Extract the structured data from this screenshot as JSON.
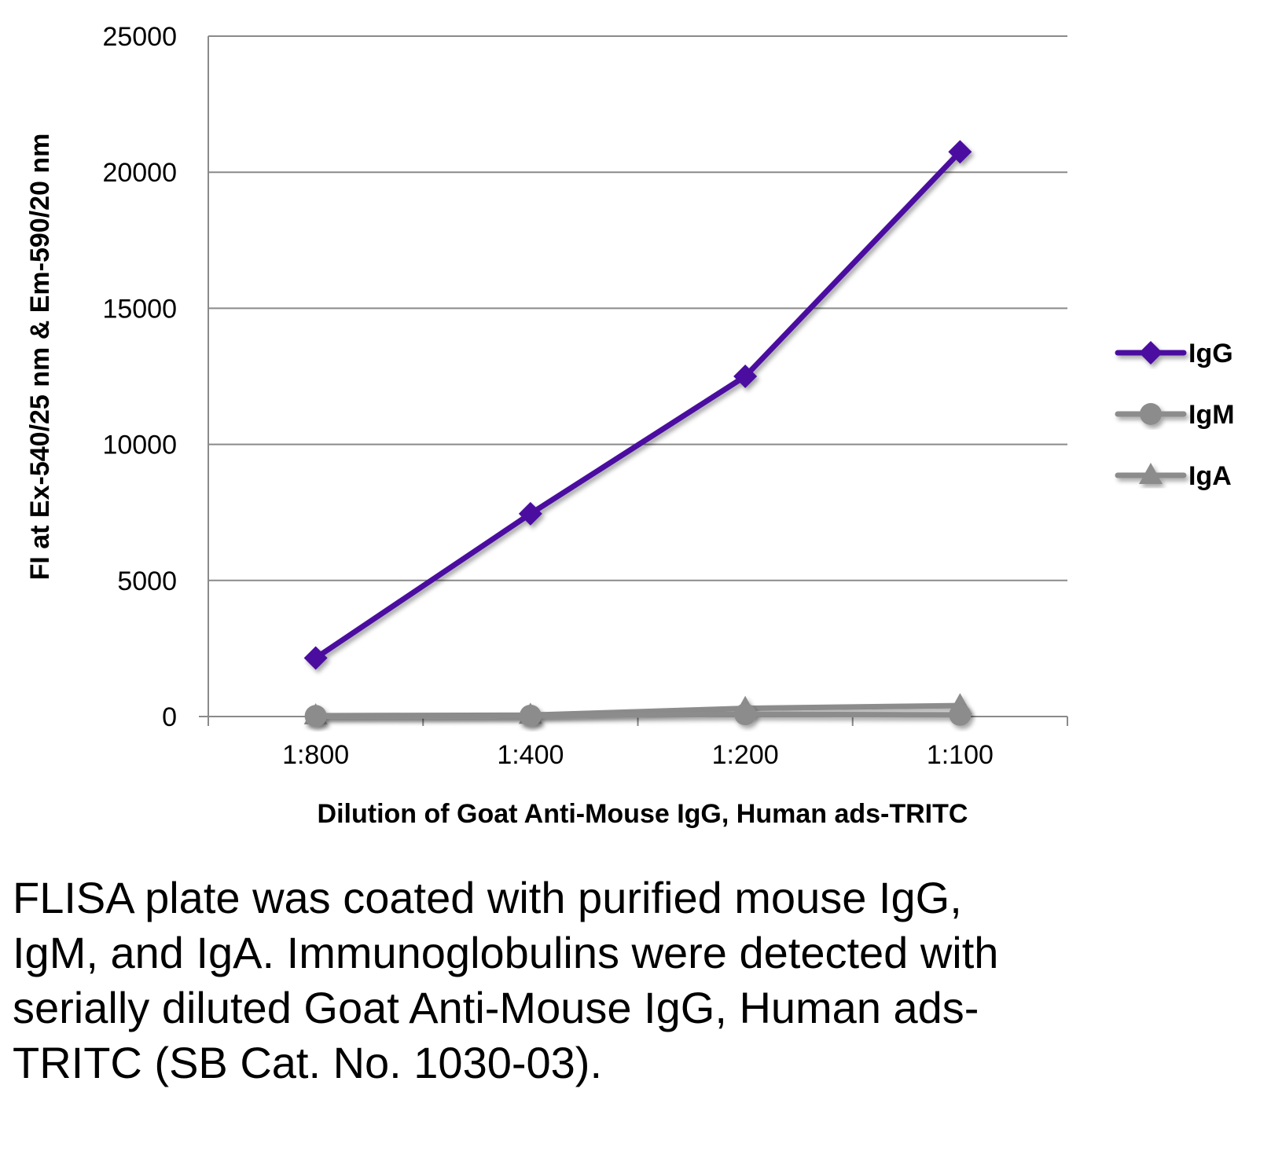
{
  "chart_data": {
    "type": "line",
    "title": "",
    "xlabel": "Dilution of Goat Anti-Mouse IgG, Human ads-TRITC",
    "ylabel": "FI at Ex-540/25 nm & Em-590/20 nm",
    "categories": [
      "1:800",
      "1:400",
      "1:200",
      "1:100"
    ],
    "ylim": [
      0,
      25000
    ],
    "yticks": [
      0,
      5000,
      10000,
      15000,
      20000,
      25000
    ],
    "grid": true,
    "legend_position": "right",
    "series": [
      {
        "name": "IgG",
        "values": [
          2150,
          7450,
          12500,
          20750
        ],
        "color": "#4b0fa0",
        "marker": "diamond"
      },
      {
        "name": "IgM",
        "values": [
          20,
          30,
          80,
          60
        ],
        "color": "#8c8c8c",
        "marker": "circle"
      },
      {
        "name": "IgA",
        "values": [
          30,
          50,
          300,
          400
        ],
        "color": "#8c8c8c",
        "marker": "triangle"
      }
    ]
  },
  "caption": "FLISA plate was coated with purified mouse IgG, IgM, and IgA.  Immunoglobulins were detected with serially diluted Goat Anti-Mouse IgG, Human ads-TRITC (SB Cat. No. 1030-03)."
}
